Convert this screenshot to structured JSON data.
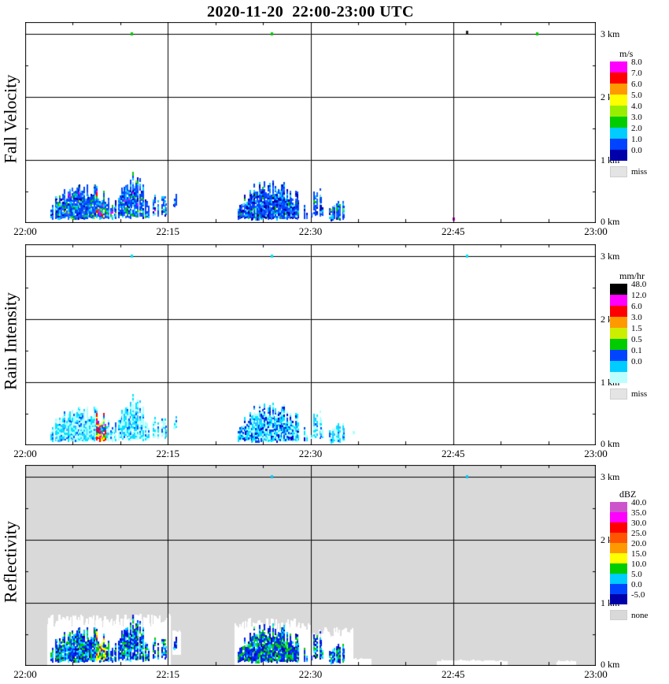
{
  "title": "2020-11-20  22:00-23:00 UTC",
  "chart_data": {
    "type": "heatmap",
    "x_range_minutes_after_2200": [
      0,
      60
    ],
    "y_range_km": [
      0,
      3.19
    ],
    "x_ticks": [
      {
        "t": 0,
        "label": "22:00"
      },
      {
        "t": 15,
        "label": "22:15"
      },
      {
        "t": 30,
        "label": "22:30"
      },
      {
        "t": 45,
        "label": "22:45"
      },
      {
        "t": 60,
        "label": "23:00"
      }
    ],
    "y_ticks": [
      {
        "km": 0,
        "label": "0 km"
      },
      {
        "km": 1,
        "label": "1 km"
      },
      {
        "km": 2,
        "label": "2 km"
      },
      {
        "km": 3,
        "label": "3 km"
      }
    ],
    "grid": {
      "x_minutes": [
        15,
        30,
        45
      ],
      "y_km": [
        1,
        2,
        3
      ]
    },
    "echo_regions": [
      {
        "id": "A1",
        "t0": 2.6,
        "t1": 9.4,
        "h0": 0.06,
        "h1": 0.66,
        "density": 0.97,
        "seed": 11
      },
      {
        "id": "A2",
        "t0": 9.4,
        "t1": 13.1,
        "h0": 0.08,
        "h1": 0.8,
        "density": 0.8,
        "seed": 22
      },
      {
        "id": "A3",
        "t0": 13.2,
        "t1": 15.0,
        "h0": 0.1,
        "h1": 0.52,
        "density": 0.65,
        "seed": 33
      },
      {
        "id": "D",
        "t0": 15.6,
        "t1": 16.2,
        "h0": 0.24,
        "h1": 0.5,
        "density": 0.55,
        "seed": 44
      },
      {
        "id": "B",
        "t0": 22.3,
        "t1": 29.7,
        "h0": 0.05,
        "h1": 0.7,
        "density": 0.97,
        "seed": 55
      },
      {
        "id": "C1",
        "t0": 30.1,
        "t1": 31.4,
        "h0": 0.1,
        "h1": 0.56,
        "density": 0.6,
        "seed": 66
      },
      {
        "id": "C2",
        "t0": 31.9,
        "t1": 33.9,
        "h0": 0.04,
        "h1": 0.4,
        "density": 0.7,
        "seed": 77
      }
    ],
    "panels": [
      {
        "id": "fall-velocity",
        "label": "Fall Velocity",
        "unit": "m/s",
        "plot_background": "#ffffff",
        "colorbar_cells": [
          {
            "label": "8.0",
            "color": "#ff00ff"
          },
          {
            "label": "7.0",
            "color": "#ff0000"
          },
          {
            "label": "6.0",
            "color": "#ff9900"
          },
          {
            "label": "5.0",
            "color": "#ffff00"
          },
          {
            "label": "4.0",
            "color": "#99ee00"
          },
          {
            "label": "3.0",
            "color": "#00cc00"
          },
          {
            "label": "2.0",
            "color": "#00ccff"
          },
          {
            "label": "1.0",
            "color": "#0044ff"
          },
          {
            "label": "0.0",
            "color": "#0000aa"
          }
        ],
        "colorbar_missing": {
          "label": "miss",
          "color": "#e4e4e4"
        },
        "palettes": {
          "default": [
            [
              "#0044ff",
              46
            ],
            [
              "#2266ff",
              16
            ],
            [
              "#00ccff",
              16
            ],
            [
              "#0000aa",
              9
            ],
            [
              "#00cc00",
              6
            ],
            [
              "#66e0ff",
              4
            ],
            [
              "#99ee00",
              2
            ],
            [
              "#ff00ff",
              1
            ]
          ],
          "B": [
            [
              "#0044ff",
              44
            ],
            [
              "#0000aa",
              18
            ],
            [
              "#2266ff",
              16
            ],
            [
              "#00ccff",
              14
            ],
            [
              "#00cc00",
              4
            ],
            [
              "#66e0ff",
              4
            ]
          ]
        },
        "streaks": [
          {
            "t0": 7.5,
            "t1": 8.5,
            "h1": 0.5,
            "palette": [
              [
                "#ff00ff",
                16
              ],
              [
                "#00ccff",
                22
              ],
              [
                "#0044ff",
                26
              ],
              [
                "#00cc00",
                12
              ],
              [
                "#ffff00",
                8
              ],
              [
                "#ff0000",
                6
              ],
              [
                "#2266ff",
                10
              ]
            ]
          }
        ],
        "specks": [
          {
            "t": 11.2,
            "h": 3.0,
            "color": "#00cc00"
          },
          {
            "t": 25.9,
            "h": 3.0,
            "color": "#00cc00"
          },
          {
            "t": 46.4,
            "h": 3.03,
            "color": "#222222"
          },
          {
            "t": 53.8,
            "h": 3.0,
            "color": "#00cc00"
          },
          {
            "t": 45.0,
            "h": 0.06,
            "color": "#cc00cc"
          }
        ]
      },
      {
        "id": "rain-intensity",
        "label": "Rain Intensity",
        "unit": "mm/hr",
        "plot_background": "#ffffff",
        "colorbar_cells": [
          {
            "label": "48.0",
            "color": "#000000"
          },
          {
            "label": "12.0",
            "color": "#ff00ff"
          },
          {
            "label": "6.0",
            "color": "#ff0000"
          },
          {
            "label": "3.0",
            "color": "#ff9900"
          },
          {
            "label": "1.5",
            "color": "#ccee00"
          },
          {
            "label": "0.5",
            "color": "#00cc00"
          },
          {
            "label": "0.1",
            "color": "#0044ff"
          },
          {
            "label": "0.0",
            "color": "#00ccff"
          },
          {
            "label": "",
            "color": "#bbffff"
          }
        ],
        "colorbar_missing": {
          "label": "miss",
          "color": "#e4e4e4"
        },
        "palettes": {
          "default": [
            [
              "#aaffff",
              40
            ],
            [
              "#00e5ff",
              30
            ],
            [
              "#33bbff",
              12
            ],
            [
              "#0055ff",
              10
            ],
            [
              "#ccffff",
              8
            ]
          ],
          "B": [
            [
              "#00e5ff",
              28
            ],
            [
              "#0044ee",
              22
            ],
            [
              "#aaffff",
              22
            ],
            [
              "#0000cc",
              10
            ],
            [
              "#33bbff",
              12
            ],
            [
              "#ccffff",
              6
            ]
          ]
        },
        "streaks": [
          {
            "t0": 7.5,
            "t1": 8.5,
            "h1": 0.5,
            "palette": [
              [
                "#ff0000",
                26
              ],
              [
                "#ffff00",
                16
              ],
              [
                "#ff9900",
                12
              ],
              [
                "#ff00ff",
                8
              ],
              [
                "#00cc00",
                10
              ],
              [
                "#00e5ff",
                16
              ],
              [
                "#0055ff",
                12
              ]
            ]
          }
        ],
        "specks": [
          {
            "t": 11.2,
            "h": 3.0,
            "color": "#00e5ff"
          },
          {
            "t": 25.9,
            "h": 3.0,
            "color": "#00e5ff"
          },
          {
            "t": 46.4,
            "h": 3.0,
            "color": "#00e5ff"
          },
          {
            "t": 34.5,
            "h": 0.2,
            "color": "#aaffff"
          }
        ]
      },
      {
        "id": "reflectivity",
        "label": "Reflectivity",
        "unit": "dBZ",
        "plot_background": "#d9d9d9",
        "colorbar_cells": [
          {
            "label": "40.0",
            "color": "#cc55cc"
          },
          {
            "label": "35.0",
            "color": "#ff00ff"
          },
          {
            "label": "30.0",
            "color": "#ff0000"
          },
          {
            "label": "25.0",
            "color": "#ff5500"
          },
          {
            "label": "20.0",
            "color": "#ff9900"
          },
          {
            "label": "15.0",
            "color": "#ffff00"
          },
          {
            "label": "10.0",
            "color": "#00cc00"
          },
          {
            "label": "5.0",
            "color": "#00ccff"
          },
          {
            "label": "0.0",
            "color": "#0044ff"
          },
          {
            "label": "-5.0",
            "color": "#0000aa"
          }
        ],
        "colorbar_missing": {
          "label": "none",
          "color": "#d9d9d9"
        },
        "white_regions": [
          {
            "t0": 2.3,
            "t1": 15.2,
            "h0": 0,
            "h1": 0.78
          },
          {
            "t0": 15.5,
            "t1": 16.3,
            "h0": 0.18,
            "h1": 0.56
          },
          {
            "t0": 22.0,
            "t1": 29.9,
            "h0": 0,
            "h1": 0.72
          },
          {
            "t0": 29.9,
            "t1": 34.4,
            "h0": 0,
            "h1": 0.58
          },
          {
            "t0": 34.4,
            "t1": 36.3,
            "h0": 0,
            "h1": 0.12
          },
          {
            "t0": 43.3,
            "t1": 50.6,
            "h0": 0,
            "h1": 0.09
          },
          {
            "t0": 55.9,
            "t1": 57.7,
            "h0": 0,
            "h1": 0.08
          }
        ],
        "palettes": {
          "default": [
            [
              "#0022ee",
              40
            ],
            [
              "#00ccff",
              20
            ],
            [
              "#00cc00",
              16
            ],
            [
              "#0000aa",
              10
            ],
            [
              "#33eeff",
              8
            ],
            [
              "#0044ff",
              6
            ]
          ],
          "B": [
            [
              "#0022ee",
              38
            ],
            [
              "#00cc00",
              26
            ],
            [
              "#00ccff",
              14
            ],
            [
              "#0000aa",
              8
            ],
            [
              "#44ff66",
              4
            ],
            [
              "#0044ff",
              10
            ]
          ]
        },
        "streaks": [
          {
            "t0": 7.5,
            "t1": 8.5,
            "h1": 0.55,
            "palette": [
              [
                "#ffff00",
                22
              ],
              [
                "#ff9900",
                16
              ],
              [
                "#00cc00",
                22
              ],
              [
                "#ff0000",
                8
              ],
              [
                "#00ccff",
                14
              ],
              [
                "#0022ee",
                18
              ]
            ]
          }
        ],
        "specks": [
          {
            "t": 25.9,
            "h": 3.0,
            "color": "#00ccff"
          },
          {
            "t": 46.4,
            "h": 3.0,
            "color": "#00ccff"
          }
        ]
      }
    ]
  }
}
